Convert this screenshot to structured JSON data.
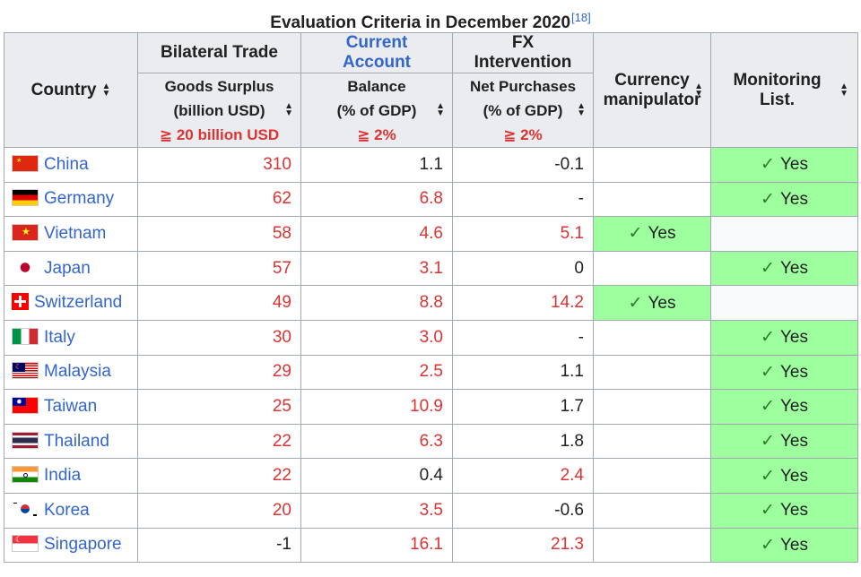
{
  "caption": {
    "title": "Evaluation Criteria in December 2020",
    "ref": "[18]"
  },
  "headers": {
    "country": "Country",
    "bilateral": "Bilateral Trade",
    "current_account": "Current Account",
    "fx": "FX Intervention",
    "goods_l1": "Goods Surplus",
    "goods_l2": "(billion USD)",
    "goods_req": "≧ 20 billion USD",
    "balance_l1": "Balance",
    "balance_l2": "(% of GDP)",
    "balance_req": "≧ 2%",
    "net_l1": "Net Purchases",
    "net_l2": "(% of GDP)",
    "net_req": "≧ 2%",
    "manip_l1": "Currency",
    "manip_l2": "manipulator",
    "monitoring": "Monitoring List."
  },
  "check_mark": "✓",
  "rows": [
    {
      "country": "China",
      "flag": "china-flag-icon",
      "surplus": "310",
      "surplus_red": true,
      "balance": "1.1",
      "balance_red": false,
      "net": "-0.1",
      "net_red": false,
      "manipulator": "",
      "monitoring": "Yes"
    },
    {
      "country": "Germany",
      "flag": "germany-flag-icon",
      "surplus": "62",
      "surplus_red": true,
      "balance": "6.8",
      "balance_red": true,
      "net": "-",
      "net_red": false,
      "manipulator": "",
      "monitoring": "Yes"
    },
    {
      "country": "Vietnam",
      "flag": "vietnam-flag-icon",
      "surplus": "58",
      "surplus_red": true,
      "balance": "4.6",
      "balance_red": true,
      "net": "5.1",
      "net_red": true,
      "manipulator": "Yes",
      "monitoring": ""
    },
    {
      "country": "Japan",
      "flag": "japan-flag-icon",
      "surplus": "57",
      "surplus_red": true,
      "balance": "3.1",
      "balance_red": true,
      "net": "0",
      "net_red": false,
      "manipulator": "",
      "monitoring": "Yes"
    },
    {
      "country": "Switzerland",
      "flag": "switzerland-flag-icon",
      "surplus": "49",
      "surplus_red": true,
      "balance": "8.8",
      "balance_red": true,
      "net": "14.2",
      "net_red": true,
      "manipulator": "Yes",
      "monitoring": ""
    },
    {
      "country": "Italy",
      "flag": "italy-flag-icon",
      "surplus": "30",
      "surplus_red": true,
      "balance": "3.0",
      "balance_red": true,
      "net": "-",
      "net_red": false,
      "manipulator": "",
      "monitoring": "Yes"
    },
    {
      "country": "Malaysia",
      "flag": "malaysia-flag-icon",
      "surplus": "29",
      "surplus_red": true,
      "balance": "2.5",
      "balance_red": true,
      "net": "1.1",
      "net_red": false,
      "manipulator": "",
      "monitoring": "Yes"
    },
    {
      "country": "Taiwan",
      "flag": "taiwan-flag-icon",
      "surplus": "25",
      "surplus_red": true,
      "balance": "10.9",
      "balance_red": true,
      "net": "1.7",
      "net_red": false,
      "manipulator": "",
      "monitoring": "Yes"
    },
    {
      "country": "Thailand",
      "flag": "thailand-flag-icon",
      "surplus": "22",
      "surplus_red": true,
      "balance": "6.3",
      "balance_red": true,
      "net": "1.8",
      "net_red": false,
      "manipulator": "",
      "monitoring": "Yes"
    },
    {
      "country": "India",
      "flag": "india-flag-icon",
      "surplus": "22",
      "surplus_red": true,
      "balance": "0.4",
      "balance_red": false,
      "net": "2.4",
      "net_red": true,
      "manipulator": "",
      "monitoring": "Yes"
    },
    {
      "country": "Korea",
      "flag": "korea-flag-icon",
      "surplus": "20",
      "surplus_red": true,
      "balance": "3.5",
      "balance_red": true,
      "net": "-0.6",
      "net_red": false,
      "manipulator": "",
      "monitoring": "Yes"
    },
    {
      "country": "Singapore",
      "flag": "singapore-flag-icon",
      "surplus": "-1",
      "surplus_red": false,
      "balance": "16.1",
      "balance_red": true,
      "net": "21.3",
      "net_red": true,
      "manipulator": "",
      "monitoring": "Yes"
    }
  ],
  "colors": {
    "yes_bg": "#9eff9e",
    "red_text": "#dd3333",
    "link_blue": "#3366cc",
    "header_bg": "#eaecf0"
  }
}
